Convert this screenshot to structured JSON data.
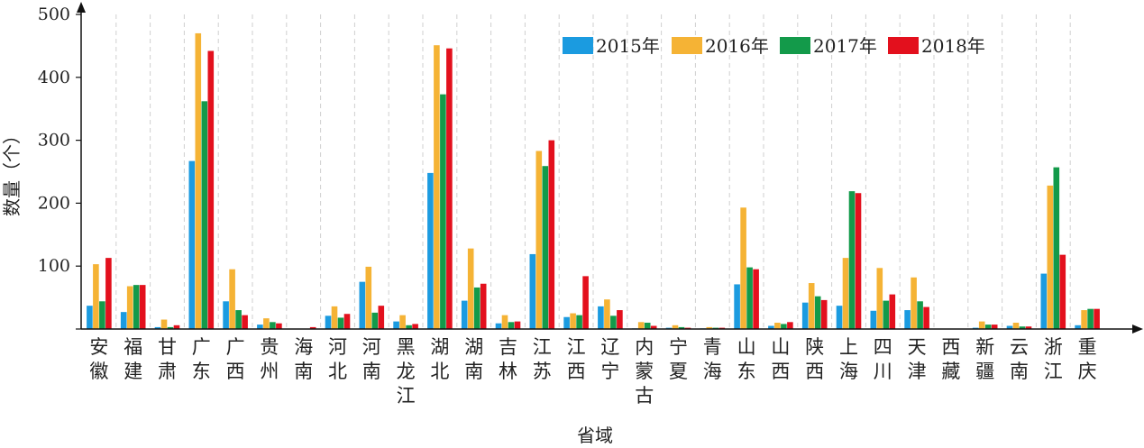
{
  "chart_data": {
    "type": "bar",
    "xlabel": "省域",
    "ylabel": "数量（个）",
    "ylim": [
      0,
      500
    ],
    "yticks": [
      100,
      200,
      300,
      400,
      500
    ],
    "grid": "vertical dashed separators between categories",
    "legend_position": "top-right",
    "categories": [
      [
        "安",
        "徽"
      ],
      [
        "福",
        "建"
      ],
      [
        "甘",
        "肃"
      ],
      [
        "广",
        "东"
      ],
      [
        "广",
        "西"
      ],
      [
        "贵",
        "州"
      ],
      [
        "海",
        "南"
      ],
      [
        "河",
        "北"
      ],
      [
        "河",
        "南"
      ],
      [
        "黑",
        "龙",
        "江"
      ],
      [
        "湖",
        "北"
      ],
      [
        "湖",
        "南"
      ],
      [
        "吉",
        "林"
      ],
      [
        "江",
        "苏"
      ],
      [
        "江",
        "西"
      ],
      [
        "辽",
        "宁"
      ],
      [
        "内",
        "蒙",
        "古"
      ],
      [
        "宁",
        "夏"
      ],
      [
        "青",
        "海"
      ],
      [
        "山",
        "东"
      ],
      [
        "山",
        "西"
      ],
      [
        "陕",
        "西"
      ],
      [
        "上",
        "海"
      ],
      [
        "四",
        "川"
      ],
      [
        "天",
        "津"
      ],
      [
        "西",
        "藏"
      ],
      [
        "新",
        "疆"
      ],
      [
        "云",
        "南"
      ],
      [
        "浙",
        "江"
      ],
      [
        "重",
        "庆"
      ]
    ],
    "series": [
      {
        "name": "2015年",
        "color": "#1b9be0",
        "values": [
          37,
          27,
          3,
          267,
          44,
          7,
          0,
          21,
          75,
          12,
          248,
          45,
          9,
          119,
          19,
          36,
          1,
          2,
          1,
          71,
          5,
          42,
          37,
          29,
          30,
          0,
          2,
          5,
          88,
          6
        ]
      },
      {
        "name": "2016年",
        "color": "#f5b335",
        "values": [
          103,
          68,
          15,
          470,
          95,
          17,
          0,
          36,
          99,
          22,
          451,
          128,
          22,
          283,
          25,
          47,
          11,
          6,
          3,
          193,
          10,
          73,
          113,
          97,
          82,
          0,
          12,
          10,
          228,
          30
        ]
      },
      {
        "name": "2017年",
        "color": "#139a4a",
        "values": [
          44,
          70,
          3,
          362,
          30,
          11,
          0,
          18,
          26,
          6,
          373,
          66,
          11,
          259,
          22,
          21,
          10,
          3,
          2,
          98,
          8,
          52,
          219,
          45,
          44,
          0,
          7,
          4,
          257,
          32
        ]
      },
      {
        "name": "2018年",
        "color": "#e3101d",
        "values": [
          113,
          70,
          6,
          442,
          22,
          9,
          3,
          24,
          37,
          8,
          446,
          72,
          12,
          300,
          84,
          30,
          5,
          2,
          2,
          95,
          11,
          46,
          216,
          55,
          35,
          0,
          7,
          4,
          118,
          32
        ]
      }
    ]
  }
}
